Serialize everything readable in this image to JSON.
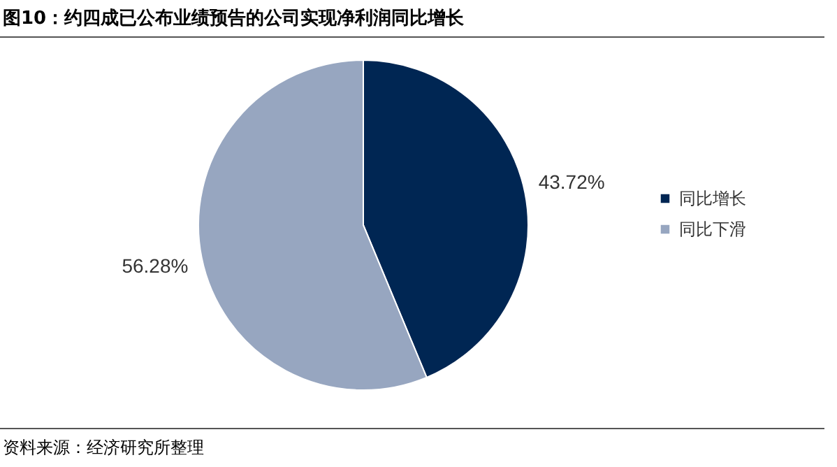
{
  "chart_data": {
    "type": "pie",
    "title": "图10：约四成已公布业绩预告的公司实现净利润同比增长",
    "categories": [
      "同比增长",
      "同比下滑"
    ],
    "values": [
      43.72,
      56.28
    ],
    "colors": [
      "#002653",
      "#97a6c0"
    ],
    "value_labels": [
      "43.72%",
      "56.28%"
    ],
    "legend": "right",
    "annotations": [
      "资料来源：经济研究所整理"
    ]
  }
}
